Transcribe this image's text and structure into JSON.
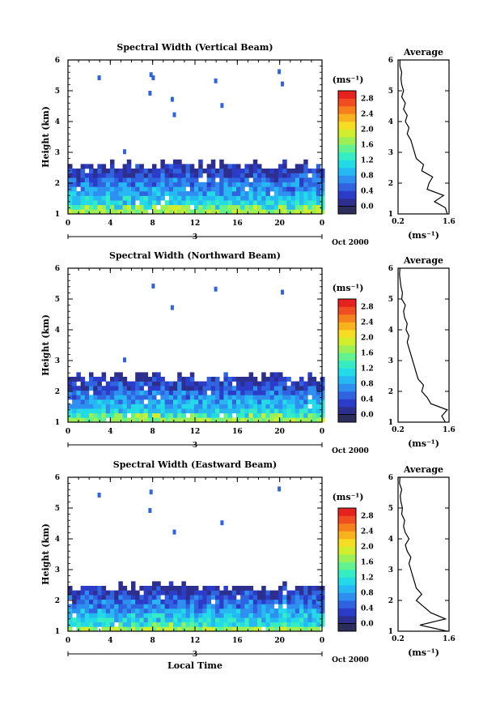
{
  "figure": {
    "xlabel": "Local Time",
    "date_label": "Oct 2000",
    "day_label": "3",
    "unit_label": "(ms⁻¹)",
    "colorbar_unit": "(ms⁻¹)",
    "colorbar_ticks": [
      "0.0",
      "0.4",
      "0.8",
      "1.2",
      "1.6",
      "2.0",
      "2.4",
      "2.8"
    ],
    "colors": [
      "#2b2e5a",
      "#2d2f8e",
      "#2b3cc8",
      "#2f63e0",
      "#2e8ff0",
      "#26b8f2",
      "#22dbe6",
      "#36ecc3",
      "#62f28e",
      "#9cf055",
      "#d0ee2e",
      "#f4dd22",
      "#f8b21e",
      "#f6801c",
      "#f04e20",
      "#e5221e"
    ]
  },
  "chart_data": [
    {
      "type": "heatmap",
      "title": "Spectral Width (Vertical Beam)",
      "xlabel": "",
      "ylabel": "Height (km)",
      "xlim": [
        0,
        24
      ],
      "ylim": [
        1,
        6
      ],
      "xticks": [
        "0",
        "4",
        "8",
        "12",
        "16",
        "20",
        "0"
      ],
      "yticks": [
        "1",
        "2",
        "3",
        "4",
        "5",
        "6"
      ],
      "layer_top_km": 2.5,
      "colorbar_range": [
        0.0,
        3.0
      ],
      "profile": {
        "title": "Average",
        "xlim": [
          0.2,
          1.6
        ],
        "xticks": [
          "0.2",
          "1.6"
        ],
        "height_km": [
          1.0,
          1.2,
          1.4,
          1.6,
          1.8,
          2.0,
          2.2,
          2.4,
          2.6,
          2.8,
          3.0,
          3.2,
          3.4,
          3.6,
          3.8,
          4.0,
          4.2,
          4.4,
          4.6,
          4.8,
          5.0,
          5.2,
          5.4,
          5.6,
          5.8,
          6.0
        ],
        "width_ms": [
          1.55,
          1.5,
          1.2,
          1.45,
          1.0,
          1.05,
          1.15,
          0.85,
          0.9,
          0.7,
          0.65,
          0.6,
          0.55,
          0.45,
          0.5,
          0.4,
          0.45,
          0.35,
          0.4,
          0.3,
          0.35,
          0.3,
          0.28,
          0.3,
          0.25,
          0.25
        ]
      }
    },
    {
      "type": "heatmap",
      "title": "Spectral Width (Northward Beam)",
      "xlabel": "",
      "ylabel": "Height (km)",
      "xlim": [
        0,
        24
      ],
      "ylim": [
        1,
        6
      ],
      "xticks": [
        "0",
        "4",
        "8",
        "12",
        "16",
        "20",
        "0"
      ],
      "yticks": [
        "1",
        "2",
        "3",
        "4",
        "5",
        "6"
      ],
      "layer_top_km": 2.4,
      "colorbar_range": [
        0.0,
        3.0
      ],
      "profile": {
        "title": "Average",
        "xlim": [
          0.2,
          1.6
        ],
        "xticks": [
          "0.2",
          "1.6"
        ],
        "height_km": [
          1.0,
          1.2,
          1.4,
          1.6,
          1.8,
          2.0,
          2.2,
          2.4,
          2.6,
          2.8,
          3.0,
          3.2,
          3.4,
          3.6,
          3.8,
          4.0,
          4.2,
          4.4,
          4.6,
          4.8,
          5.0,
          5.2,
          5.4,
          5.6,
          5.8,
          6.0
        ],
        "width_ms": [
          1.5,
          1.4,
          1.55,
          1.1,
          1.0,
          0.85,
          0.9,
          0.75,
          0.7,
          0.65,
          0.6,
          0.55,
          0.5,
          0.45,
          0.5,
          0.42,
          0.45,
          0.38,
          0.35,
          0.4,
          0.3,
          0.32,
          0.28,
          0.26,
          0.24,
          0.25
        ]
      }
    },
    {
      "type": "heatmap",
      "title": "Spectral Width (Eastward Beam)",
      "xlabel": "Local Time",
      "ylabel": "Height (km)",
      "xlim": [
        0,
        24
      ],
      "ylim": [
        1,
        6
      ],
      "xticks": [
        "0",
        "4",
        "8",
        "12",
        "16",
        "20",
        "0"
      ],
      "yticks": [
        "1",
        "2",
        "3",
        "4",
        "5",
        "6"
      ],
      "layer_top_km": 2.4,
      "colorbar_range": [
        0.0,
        3.0
      ],
      "profile": {
        "title": "Average",
        "xlim": [
          0.2,
          1.6
        ],
        "xticks": [
          "0.2",
          "1.6"
        ],
        "height_km": [
          1.0,
          1.2,
          1.4,
          1.6,
          1.8,
          2.0,
          2.2,
          2.4,
          2.6,
          2.8,
          3.0,
          3.2,
          3.4,
          3.6,
          3.8,
          4.0,
          4.2,
          4.4,
          4.6,
          4.8,
          5.0,
          5.2,
          5.4,
          5.6,
          5.8,
          6.0
        ],
        "width_ms": [
          1.55,
          0.8,
          1.5,
          1.1,
          0.9,
          0.7,
          0.85,
          0.7,
          0.65,
          0.6,
          0.55,
          0.5,
          0.55,
          0.45,
          0.4,
          0.5,
          0.4,
          0.35,
          0.38,
          0.3,
          0.32,
          0.28,
          0.26,
          0.3,
          0.24,
          0.25
        ]
      }
    }
  ]
}
